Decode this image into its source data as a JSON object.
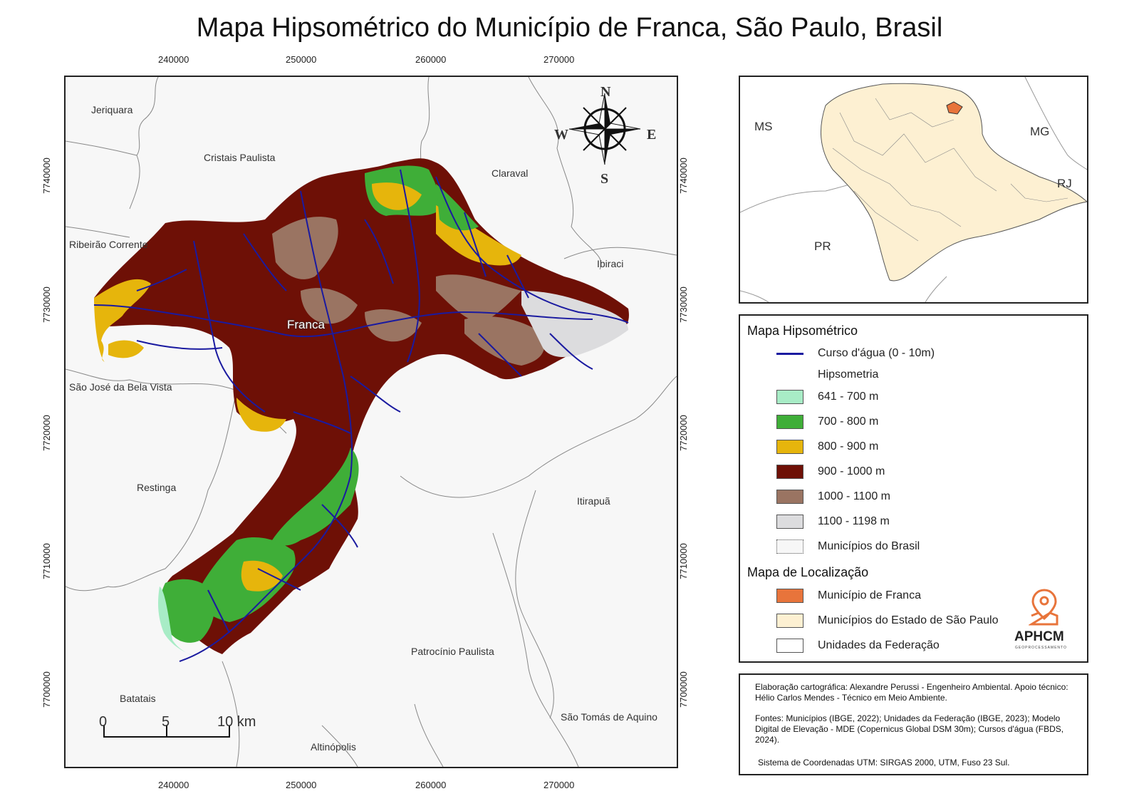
{
  "title": "Mapa Hipsométrico do Município de Franca, São Paulo, Brasil",
  "axes": {
    "x_ticks": [
      "240000",
      "250000",
      "260000",
      "270000"
    ],
    "y_ticks": [
      "7740000",
      "7730000",
      "7720000",
      "7710000",
      "7700000"
    ]
  },
  "map": {
    "center_label": "Franca",
    "municipalities": [
      "Jeriquara",
      "Cristais Paulista",
      "Claraval",
      "Ribeirão Corrente",
      "Ibiraci",
      "São José da Bela Vista",
      "Restinga",
      "Itirapuã",
      "Patrocínio Paulista",
      "Batatais",
      "São Tomás de Aquino",
      "Altinópolis"
    ],
    "compass": {
      "n": "N",
      "s": "S",
      "e": "E",
      "w": "W"
    },
    "scale_bar": {
      "labels": [
        "0",
        "5",
        "10 km"
      ]
    }
  },
  "inset": {
    "labels": [
      "MS",
      "MG",
      "RJ",
      "PR"
    ]
  },
  "legend": {
    "title": "Mapa Hipsométrico",
    "stream_label": "Curso d'água (0 - 10m)",
    "hipso_title": "Hipsometria",
    "classes": [
      {
        "label": "641 - 700 m",
        "color": "#a8ecc6"
      },
      {
        "label": "700 - 800 m",
        "color": "#3fae38"
      },
      {
        "label": "800 - 900 m",
        "color": "#e6b50c"
      },
      {
        "label": "900 - 1000 m",
        "color": "#6e1006"
      },
      {
        "label": "1000 - 1100 m",
        "color": "#9a7462"
      },
      {
        "label": "1100 - 1198 m",
        "color": "#dcdcde"
      },
      {
        "label": "Municípios do Brasil",
        "color": "#f7f7f7"
      }
    ],
    "loc_title": "Mapa de Localização",
    "loc_classes": [
      {
        "label": "Município de Franca",
        "color": "#e8743b"
      },
      {
        "label": "Municípios do Estado de São Paulo",
        "color": "#fdf0d2"
      },
      {
        "label": "Unidades da Federação",
        "color": "#ffffff"
      }
    ],
    "logo": "APHCM",
    "logo_sub": "GEOPROCESSAMENTO"
  },
  "credits": {
    "line1": "Elaboração cartográfica: Alexandre Perussi - Engenheiro Ambiental. Apoio técnico: Hélio Carlos Mendes - Técnico em Meio Ambiente.",
    "line2": "Fontes: Municípios (IBGE, 2022); Unidades da Federação (IBGE, 2023); Modelo Digital de Elevação - MDE (Copernicus Global DSM 30m); Cursos d'água (FBDS, 2024).",
    "line3": "Sistema de Coordenadas UTM: SIRGAS 2000, UTM, Fuso 23 Sul."
  },
  "colors": {
    "stream": "#1a1aa0",
    "frame": "#222222"
  }
}
